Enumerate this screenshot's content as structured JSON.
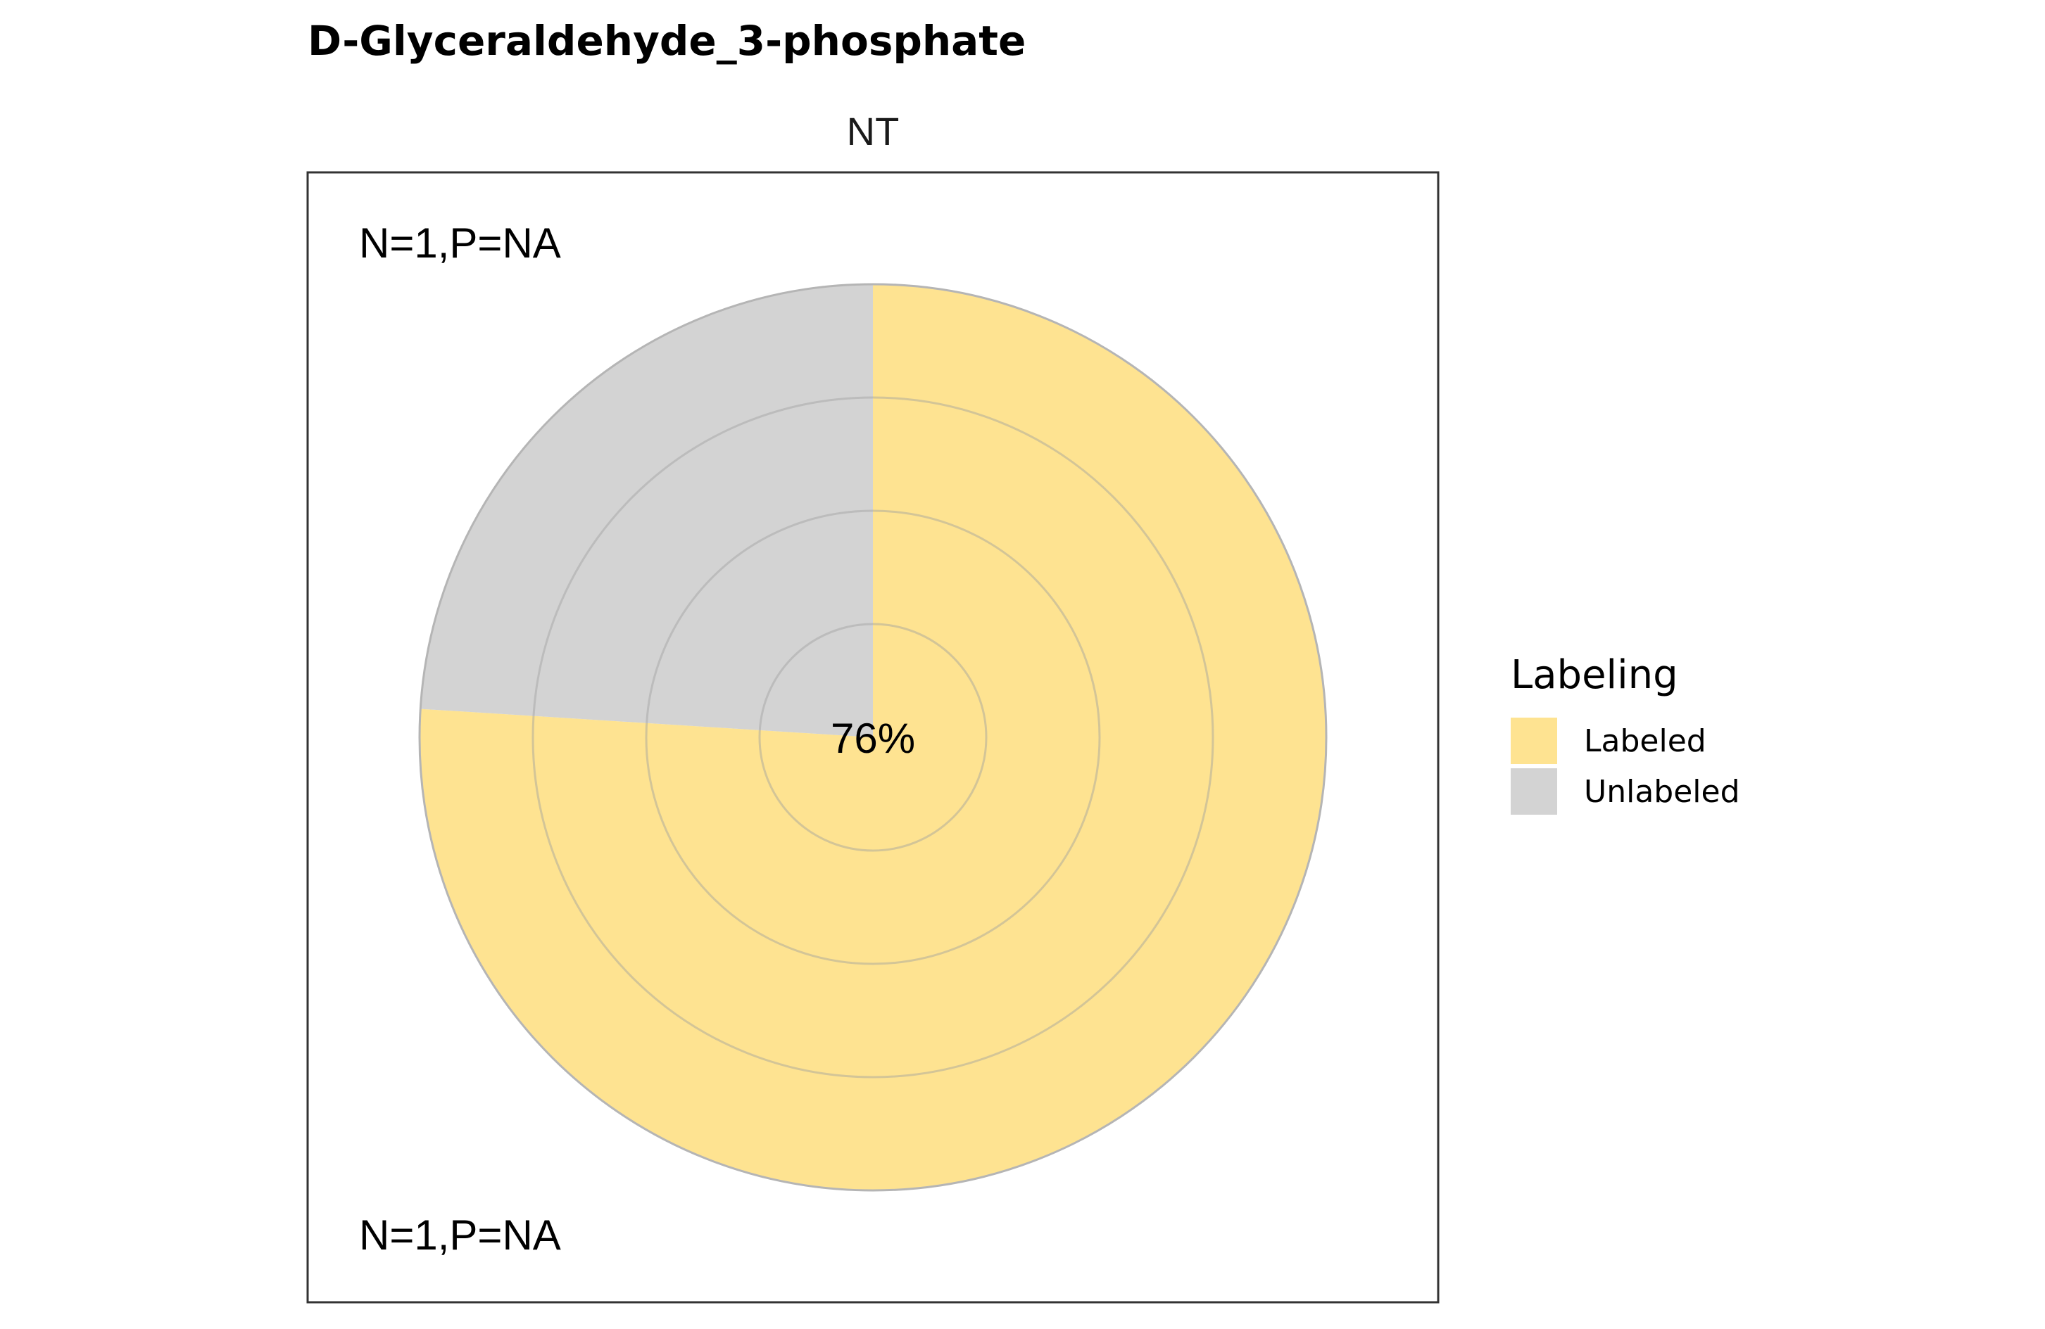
{
  "chart_data": {
    "type": "pie",
    "title": "D-Glyceraldehyde_3-phosphate",
    "facet_label": "NT",
    "center_label": "76%",
    "annotation_top": "N=1,P=NA",
    "annotation_bottom": "N=1,P=NA",
    "legend": {
      "title": "Labeling",
      "placement": "right"
    },
    "slices": [
      {
        "name": "Labeled",
        "value": 0.76,
        "color": "#FEE391"
      },
      {
        "name": "Unlabeled",
        "value": 0.24,
        "color": "#D3D3D3"
      }
    ],
    "grid_rings": 4,
    "panel_border": true
  }
}
